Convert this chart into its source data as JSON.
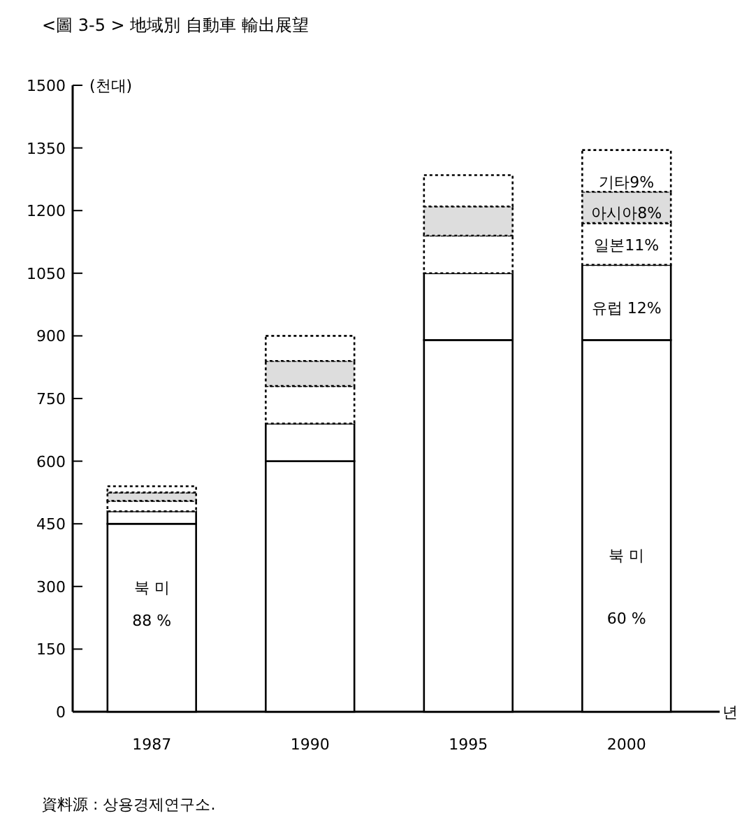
{
  "chart_data": {
    "type": "bar",
    "title": "<圖 3-5 >  地域別  自動車  輸出展望",
    "ylabel": "(천대)",
    "xlabel": "년",
    "stacked": true,
    "categories": [
      "1987",
      "1990",
      "1995",
      "2000"
    ],
    "series": [
      {
        "color": "#ffffff",
        "line_style": "solid",
        "values": [
          450,
          600,
          890,
          890
        ]
      },
      {
        "color": "#ffffff",
        "line_style": "solid",
        "values": [
          30,
          90,
          160,
          180
        ]
      },
      {
        "color": "#ffffff",
        "line_style": "dotted",
        "values": [
          25,
          90,
          90,
          100
        ]
      },
      {
        "color": "#dddddd",
        "line_style": "dotted",
        "values": [
          20,
          60,
          70,
          75
        ]
      },
      {
        "color": "#ffffff",
        "line_style": "dotted",
        "values": [
          15,
          60,
          75,
          100
        ]
      }
    ],
    "ylim": [
      0,
      1500
    ],
    "yticks": [
      0,
      150,
      300,
      450,
      600,
      750,
      900,
      1050,
      1200,
      1350,
      1500
    ],
    "annotations": [
      "북 미",
      "88 %",
      "북 미",
      "60 %",
      "유럽 12%",
      "일본11%",
      "아시아8%",
      "기타9%",
      "資料源 : 상용경제연구소."
    ]
  }
}
